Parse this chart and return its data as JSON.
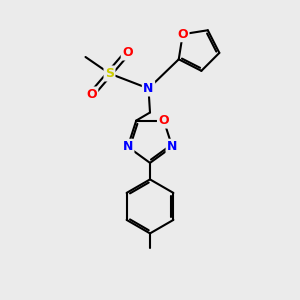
{
  "background_color": "#ebebeb",
  "bond_color": "#000000",
  "atom_colors": {
    "N": "#0000ff",
    "O": "#ff0000",
    "S": "#cccc00",
    "C": "#000000"
  },
  "bond_width": 1.5,
  "figsize": [
    3.0,
    3.0
  ],
  "dpi": 100
}
